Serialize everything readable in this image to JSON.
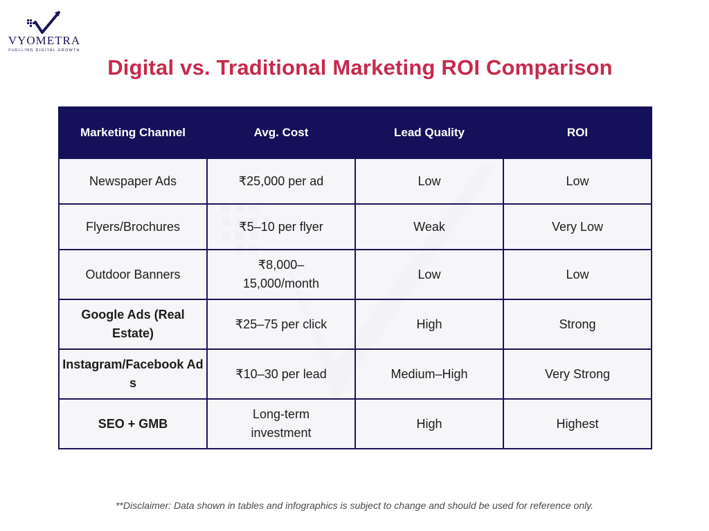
{
  "brand": {
    "name": "VYOMETRA",
    "tagline": "FUELLING DIGITAL GROWTH",
    "colors": {
      "navy": "#15105a",
      "accent_red": "#c8294a"
    }
  },
  "title": "Digital vs. Traditional Marketing ROI Comparison",
  "table": {
    "headers": [
      "Marketing Channel",
      "Avg. Cost",
      "Lead Quality",
      "ROI"
    ],
    "rows": [
      [
        "Newspaper Ads",
        "₹25,000 per ad",
        "Low",
        "Low"
      ],
      [
        "Flyers/Brochures",
        "₹5–10 per flyer",
        "Weak",
        "Very Low"
      ],
      [
        "Outdoor Banners",
        "₹8,000–15,000/month",
        "Low",
        "Low"
      ],
      [
        "Google Ads (Real Estate)",
        "₹25–75 per click",
        "High",
        "Strong"
      ],
      [
        "Instagram/Facebook Ads",
        "₹10–30 per lead",
        "Medium–High",
        "Very Strong"
      ],
      [
        "SEO + GMB",
        "Long-term investment",
        "High",
        "Highest"
      ]
    ]
  },
  "disclaimer": "**Disclaimer: Data shown in tables and infographics is subject to change and should be used for reference only."
}
